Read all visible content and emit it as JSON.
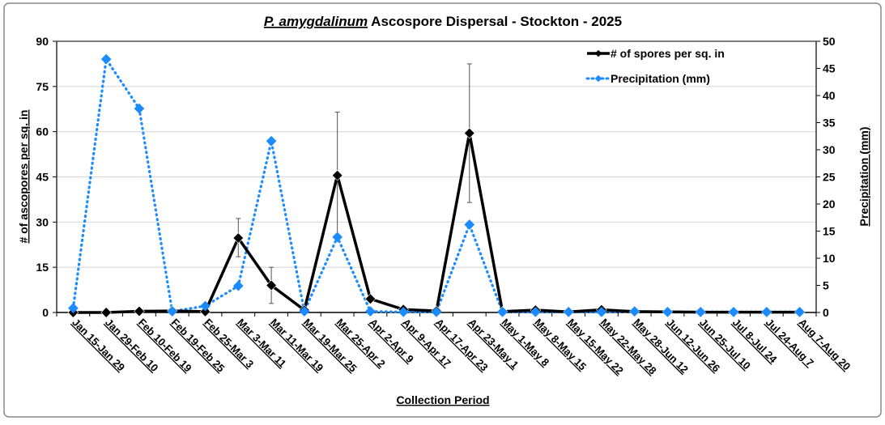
{
  "chart_data": {
    "type": "line",
    "title_italic": "P. amygdalinum",
    "title_rest": " Ascospore Dispersal - Stockton - 2025",
    "xlabel": "Collection Period",
    "ylabel": "# of ascopores per sq. in",
    "y2label": "Precipitation (mm)",
    "ylim": [
      0,
      90
    ],
    "yticks": [
      0,
      15,
      30,
      45,
      60,
      75,
      90
    ],
    "y2lim": [
      0,
      50
    ],
    "y2ticks": [
      0,
      5,
      10,
      15,
      20,
      25,
      30,
      35,
      40,
      45,
      50
    ],
    "grid": true,
    "legend_position": "top-right",
    "categories": [
      "Jan 15-Jan 29",
      "Jan 29-Feb 10",
      "Feb 10-Feb 19",
      "Feb 19-Feb 25",
      "Feb 25-Mar 3",
      "Mar 3-Mar 11",
      "Mar 11-Mar 19",
      "Mar 19-Mar 25",
      "Mar 25-Apr 2",
      "Apr 2-Apr 9",
      "Apr 9-Apr 17",
      "Apr 17-Apr 23",
      "Apr 23-May 1",
      "May 1-May 8",
      "May 8-May 15",
      "May 15-May 22",
      "May 22-May 28",
      "May 28-Jun 12",
      "Jun 12-Jun 26",
      "Jun 25-Jul 10",
      "Jul 8-Jul 24",
      "Jul 24-Aug 7",
      "Aug 7-Aug 20"
    ],
    "series": [
      {
        "name": "# of spores per sq. in",
        "axis": "left",
        "color": "#000000",
        "style": "solid",
        "values": [
          0,
          0,
          0.4,
          0.5,
          0.3,
          24.7,
          9,
          0.8,
          45.5,
          4.5,
          1,
          0.5,
          59.5,
          0.3,
          0.8,
          0.2,
          0.9,
          0.3,
          0.2,
          0.1,
          0.1,
          0.1,
          0.1
        ],
        "error_low": [
          null,
          null,
          null,
          null,
          null,
          18.5,
          3,
          null,
          25,
          null,
          null,
          null,
          36.5,
          null,
          null,
          null,
          null,
          null,
          null,
          null,
          null,
          null,
          null
        ],
        "error_high": [
          null,
          null,
          null,
          null,
          null,
          31.2,
          15,
          null,
          66.5,
          null,
          null,
          null,
          82.5,
          null,
          null,
          null,
          null,
          null,
          null,
          null,
          null,
          null,
          null
        ]
      },
      {
        "name": "Precipitation (mm)",
        "axis": "right",
        "color": "#1a8cff",
        "style": "dotted",
        "values": [
          0.8,
          46.7,
          37.6,
          0.2,
          1.2,
          4.9,
          31.6,
          0.2,
          13.9,
          0.2,
          0.1,
          0.1,
          16.2,
          0.1,
          0.1,
          0.1,
          0.1,
          0.2,
          0.1,
          0.1,
          0.1,
          0.1,
          0.1
        ]
      }
    ]
  }
}
